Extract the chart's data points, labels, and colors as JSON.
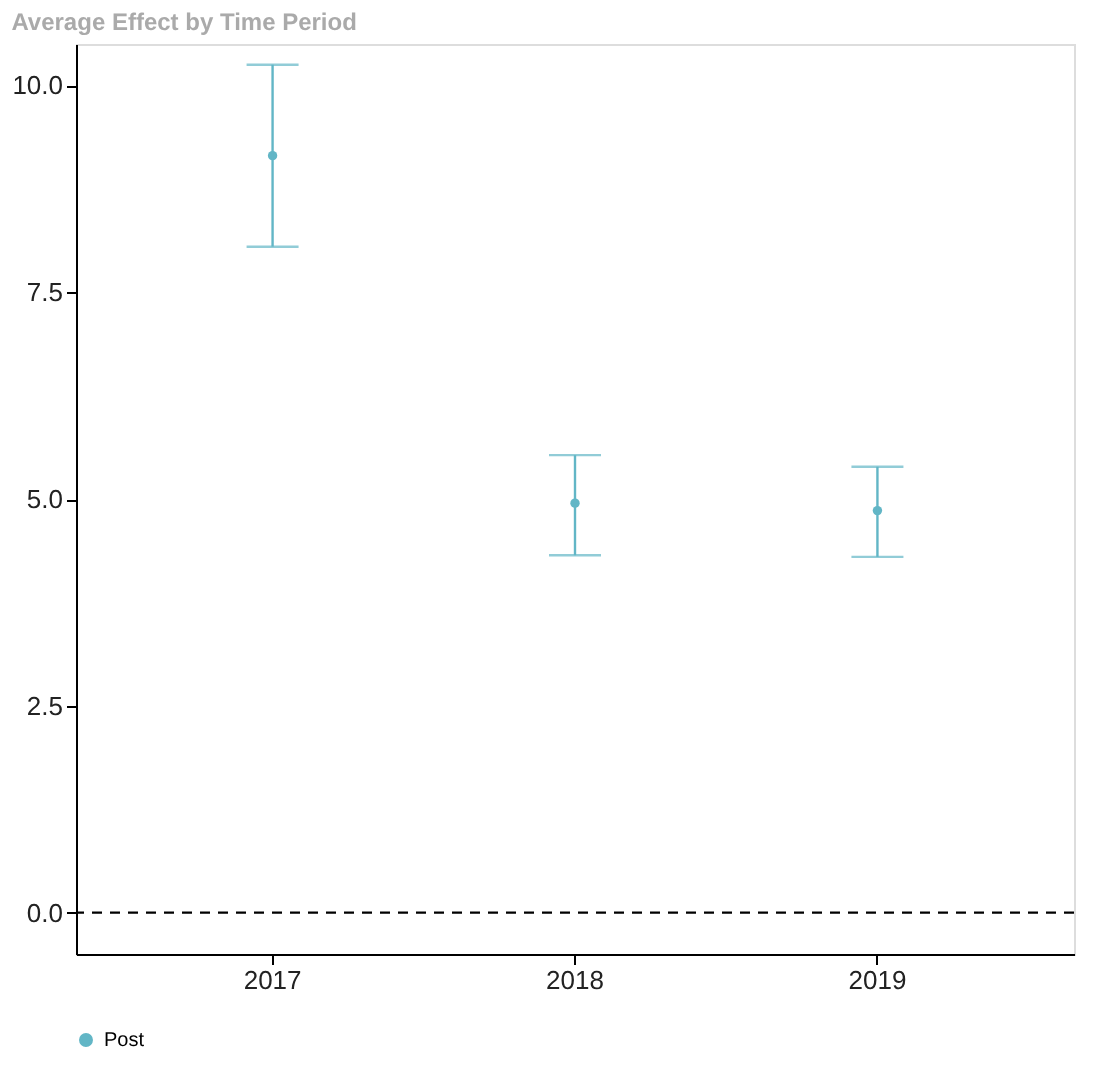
{
  "chart_data": {
    "type": "scatter",
    "title": "Average Effect by Time Period",
    "categories": [
      "2017",
      "2018",
      "2019"
    ],
    "series": [
      {
        "name": "Post",
        "color": "#62b6c6",
        "values": [
          9.15,
          4.95,
          4.86
        ],
        "errors": [
          [
            8.05,
            10.25
          ],
          [
            4.32,
            5.53
          ],
          [
            4.3,
            5.39
          ]
        ]
      }
    ],
    "ylim": [
      -0.5,
      10.5
    ],
    "yticks": [
      {
        "value": 0,
        "label": "0.0"
      },
      2.5,
      {
        "value": 5,
        "label": "5.0"
      },
      7.5,
      {
        "value": 10,
        "label": "10.0"
      }
    ],
    "ref_lines": [
      {
        "axis": "y",
        "value": 0,
        "line_style": "dashed",
        "color": "#000000"
      }
    ],
    "grid": false,
    "legend": "bottom",
    "marker": "circle"
  }
}
